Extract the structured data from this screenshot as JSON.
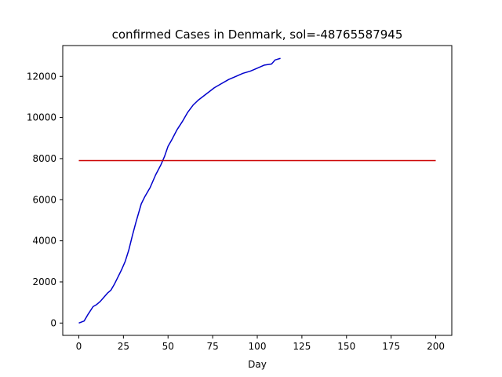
{
  "chart_data": {
    "type": "line",
    "title": "confirmed Cases in Denmark, sol=-48765587945",
    "xlabel": "Day",
    "ylabel": "",
    "xlim": [
      -9,
      209
    ],
    "ylim": [
      -600,
      13500
    ],
    "xticks": [
      0,
      25,
      50,
      75,
      100,
      125,
      150,
      175,
      200
    ],
    "yticks": [
      0,
      2000,
      4000,
      6000,
      8000,
      10000,
      12000
    ],
    "grid": false,
    "legend": "none",
    "series": [
      {
        "color": "#0000cc",
        "x": [
          0,
          3,
          5,
          8,
          10,
          12,
          14,
          16,
          18,
          20,
          22,
          24,
          26,
          28,
          30,
          32,
          34,
          35,
          37,
          40,
          43,
          46,
          48,
          50,
          52,
          55,
          58,
          61,
          64,
          67,
          70,
          73,
          76,
          80,
          84,
          88,
          92,
          96,
          100,
          104,
          108,
          110,
          113
        ],
        "y": [
          0,
          100,
          400,
          800,
          900,
          1050,
          1250,
          1450,
          1600,
          1900,
          2250,
          2600,
          3000,
          3550,
          4250,
          4900,
          5500,
          5800,
          6150,
          6600,
          7200,
          7700,
          8100,
          8600,
          8900,
          9400,
          9800,
          10250,
          10600,
          10850,
          11050,
          11250,
          11450,
          11650,
          11850,
          12000,
          12150,
          12250,
          12400,
          12550,
          12600,
          12800,
          12880
        ]
      },
      {
        "color": "#cc0000",
        "x": [
          0,
          200
        ],
        "y": [
          7900,
          7900
        ]
      }
    ]
  }
}
